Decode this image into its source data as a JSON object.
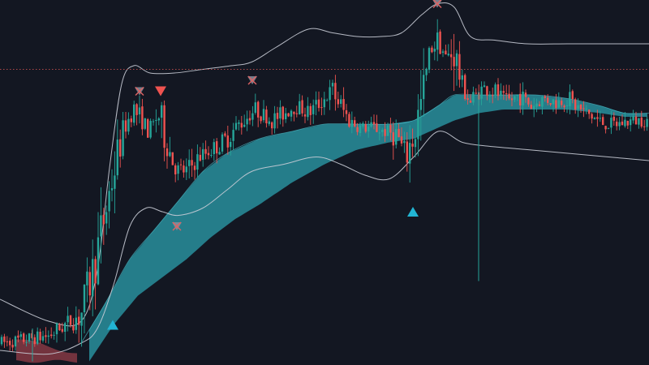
{
  "chart_data": {
    "type": "candlestick",
    "title": "",
    "xlabel": "",
    "ylabel": "",
    "x_range": [
      0,
      800
    ],
    "ylim": [
      0,
      100
    ],
    "grid": false,
    "legend": "none",
    "colors": {
      "background": "#131722",
      "bull": "#26a69a",
      "bear": "#ef5350",
      "band": "#c9ccd6",
      "cloud": "#2a9aa8",
      "cloud_bear": "#8c3b46",
      "buy_marker": "#22b5d4",
      "sell_marker": "#ef5350",
      "exit_marker": "#8a8f9e",
      "price_line": "#b04a4a"
    },
    "price_line": 81,
    "price_path": [
      [
        0,
        6
      ],
      [
        60,
        8
      ],
      [
        100,
        14
      ],
      [
        115,
        26
      ],
      [
        130,
        42
      ],
      [
        145,
        58
      ],
      [
        155,
        66
      ],
      [
        165,
        70
      ],
      [
        175,
        67
      ],
      [
        185,
        64
      ],
      [
        195,
        69
      ],
      [
        205,
        62
      ],
      [
        215,
        54
      ],
      [
        230,
        53
      ],
      [
        245,
        57
      ],
      [
        260,
        59
      ],
      [
        275,
        61
      ],
      [
        295,
        66
      ],
      [
        315,
        70
      ],
      [
        335,
        67
      ],
      [
        350,
        69
      ],
      [
        365,
        71
      ],
      [
        380,
        69
      ],
      [
        395,
        72
      ],
      [
        410,
        75
      ],
      [
        420,
        71
      ],
      [
        430,
        67
      ],
      [
        445,
        65
      ],
      [
        460,
        65
      ],
      [
        475,
        64
      ],
      [
        490,
        63
      ],
      [
        500,
        57
      ],
      [
        510,
        63
      ],
      [
        520,
        72
      ],
      [
        530,
        86
      ],
      [
        540,
        89
      ],
      [
        550,
        84
      ],
      [
        560,
        86
      ],
      [
        570,
        76
      ],
      [
        580,
        72
      ],
      [
        595,
        76
      ],
      [
        610,
        75
      ],
      [
        625,
        72
      ],
      [
        640,
        74
      ],
      [
        655,
        71
      ],
      [
        670,
        73
      ],
      [
        685,
        72
      ],
      [
        700,
        73
      ],
      [
        715,
        70
      ],
      [
        730,
        68
      ],
      [
        745,
        66
      ],
      [
        760,
        66
      ],
      [
        780,
        67
      ],
      [
        800,
        67
      ]
    ],
    "upper_band": [
      [
        0,
        18
      ],
      [
        60,
        12
      ],
      [
        100,
        12
      ],
      [
        120,
        26
      ],
      [
        135,
        54
      ],
      [
        150,
        77
      ],
      [
        165,
        82
      ],
      [
        185,
        80
      ],
      [
        215,
        80
      ],
      [
        250,
        81
      ],
      [
        285,
        82
      ],
      [
        310,
        83
      ],
      [
        340,
        87
      ],
      [
        380,
        92
      ],
      [
        410,
        91
      ],
      [
        440,
        90
      ],
      [
        470,
        90
      ],
      [
        495,
        91
      ],
      [
        520,
        96
      ],
      [
        540,
        99
      ],
      [
        560,
        98
      ],
      [
        580,
        90
      ],
      [
        610,
        89
      ],
      [
        650,
        88
      ],
      [
        700,
        88
      ],
      [
        750,
        88
      ],
      [
        800,
        88
      ]
    ],
    "lower_band": [
      [
        0,
        4
      ],
      [
        60,
        3
      ],
      [
        100,
        6
      ],
      [
        120,
        10
      ],
      [
        140,
        22
      ],
      [
        160,
        38
      ],
      [
        180,
        43
      ],
      [
        200,
        42
      ],
      [
        220,
        41
      ],
      [
        250,
        43
      ],
      [
        280,
        48
      ],
      [
        310,
        53
      ],
      [
        350,
        55
      ],
      [
        390,
        57
      ],
      [
        420,
        55
      ],
      [
        450,
        52
      ],
      [
        480,
        51
      ],
      [
        510,
        57
      ],
      [
        540,
        64
      ],
      [
        570,
        61
      ],
      [
        600,
        60
      ],
      [
        650,
        59
      ],
      [
        700,
        58
      ],
      [
        750,
        57
      ],
      [
        800,
        56
      ]
    ],
    "cloud_upper": [
      [
        100,
        6
      ],
      [
        130,
        17
      ],
      [
        160,
        29
      ],
      [
        190,
        37
      ],
      [
        220,
        45
      ],
      [
        250,
        53
      ],
      [
        280,
        58
      ],
      [
        320,
        62
      ],
      [
        360,
        64
      ],
      [
        400,
        66
      ],
      [
        440,
        66
      ],
      [
        480,
        66
      ],
      [
        510,
        67
      ],
      [
        540,
        71
      ],
      [
        560,
        74
      ],
      [
        590,
        74
      ],
      [
        620,
        74
      ],
      [
        660,
        74
      ],
      [
        700,
        73
      ],
      [
        740,
        71
      ],
      [
        770,
        69
      ],
      [
        800,
        69
      ]
    ],
    "cloud_lower": [
      [
        110,
        1
      ],
      [
        140,
        11
      ],
      [
        170,
        19
      ],
      [
        200,
        24
      ],
      [
        230,
        29
      ],
      [
        260,
        35
      ],
      [
        290,
        40
      ],
      [
        320,
        44
      ],
      [
        360,
        50
      ],
      [
        400,
        55
      ],
      [
        440,
        59
      ],
      [
        480,
        61
      ],
      [
        510,
        62
      ],
      [
        540,
        65
      ],
      [
        560,
        67
      ],
      [
        590,
        69
      ],
      [
        620,
        70
      ],
      [
        660,
        70
      ],
      [
        700,
        70
      ],
      [
        740,
        69
      ],
      [
        770,
        68
      ],
      [
        800,
        68
      ]
    ],
    "bear_cloud": {
      "x_start": 20,
      "x_end": 95,
      "top": 7,
      "bottom": 1
    },
    "spikes": [
      {
        "x": 590,
        "low": 23,
        "high": 75
      },
      {
        "x": 40,
        "low": 1,
        "high": 10
      }
    ],
    "markers": [
      {
        "type": "exit",
        "x": 172,
        "y": 75
      },
      {
        "type": "sell",
        "x": 198,
        "y": 75
      },
      {
        "type": "exit",
        "x": 311,
        "y": 78
      },
      {
        "type": "exit",
        "x": 539,
        "y": 99
      },
      {
        "type": "exit",
        "x": 218,
        "y": 38
      },
      {
        "type": "buy",
        "x": 509,
        "y": 42
      },
      {
        "type": "buy",
        "x": 139,
        "y": 11
      }
    ]
  }
}
